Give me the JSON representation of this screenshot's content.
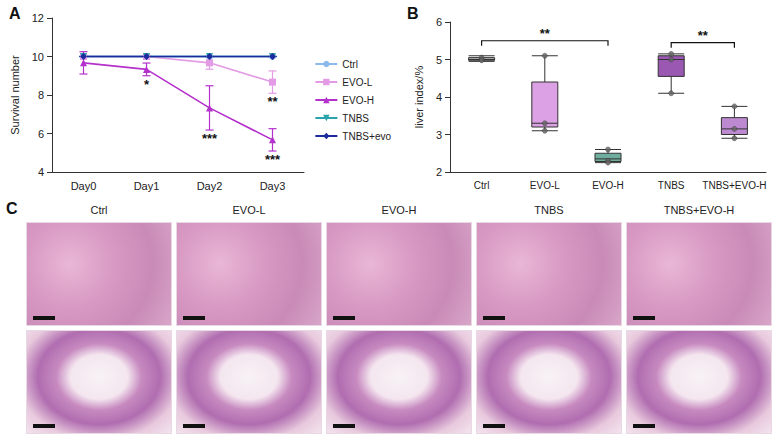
{
  "chart_data": [
    {
      "type": "line",
      "title": "A",
      "y_label": "Survival number",
      "categories": [
        "Day0",
        "Day1",
        "Day2",
        "Day3"
      ],
      "ylim": [
        4,
        12
      ],
      "yticks": [
        4,
        6,
        8,
        10,
        12
      ],
      "grid": false,
      "legend": "right",
      "series": [
        {
          "name": "Ctrl",
          "color": "#8db8ea",
          "marker": "circle",
          "values": [
            10,
            10,
            10,
            10
          ],
          "errors": [
            0,
            0,
            0,
            0
          ]
        },
        {
          "name": "EVO-L",
          "color": "#e49be6",
          "marker": "rect",
          "values": [
            10,
            10,
            9.67,
            8.67
          ],
          "errors": [
            0,
            0,
            0.33,
            0.58
          ]
        },
        {
          "name": "EVO-H",
          "color": "#b431cc",
          "marker": "triangle",
          "values": [
            9.67,
            9.33,
            7.33,
            5.67
          ],
          "errors": [
            0.58,
            0.33,
            1.15,
            0.58
          ]
        },
        {
          "name": "TNBS",
          "color": "#2aa3ab",
          "marker": "triangle-down",
          "values": [
            10,
            10,
            10,
            10
          ],
          "errors": [
            0,
            0,
            0,
            0
          ]
        },
        {
          "name": "TNBS+evo",
          "color": "#1c2a9e",
          "marker": "diamond",
          "values": [
            10,
            10,
            10,
            10
          ],
          "errors": [
            0,
            0,
            0,
            0
          ]
        }
      ],
      "annotations": [
        {
          "text": "*",
          "series": "EVO-H",
          "x": "Day1"
        },
        {
          "text": "***",
          "series": "EVO-H",
          "x": "Day2"
        },
        {
          "text": "***",
          "series": "EVO-H",
          "x": "Day3"
        },
        {
          "text": "**",
          "series": "EVO-L",
          "x": "Day3"
        }
      ]
    },
    {
      "type": "boxplot",
      "title": "B",
      "y_label": "liver index/%",
      "categories": [
        "Ctrl",
        "EVO-L",
        "EVO-H",
        "TNBS",
        "TNBS+EVO-H"
      ],
      "ylim": [
        2,
        6
      ],
      "yticks": [
        2,
        3,
        4,
        5,
        6
      ],
      "grid": false,
      "colors": [
        "#b4b4b4",
        "#dca0e4",
        "#6fae9e",
        "#9a58b2",
        "#bd8ad2"
      ],
      "boxes": [
        [
          4.95,
          4.98,
          5.0,
          5.05,
          5.1
        ],
        [
          3.1,
          3.2,
          3.3,
          4.4,
          5.1
        ],
        [
          2.25,
          2.28,
          2.35,
          2.5,
          2.6
        ],
        [
          4.1,
          4.55,
          5.0,
          5.1,
          5.15
        ],
        [
          2.9,
          3.0,
          3.15,
          3.45,
          3.75
        ]
      ],
      "points": [
        [
          5.0,
          5.05,
          4.98
        ],
        [
          5.1,
          3.3,
          3.1
        ],
        [
          2.6,
          2.3,
          2.25
        ],
        [
          5.15,
          5.0,
          4.1
        ],
        [
          3.75,
          3.15,
          2.9
        ]
      ],
      "comparisons": [
        {
          "from": "Ctrl",
          "to": "EVO-H",
          "label": "**",
          "y": 5.5
        },
        {
          "from": "TNBS",
          "to": "TNBS+EVO-H",
          "label": "**",
          "y": 5.45
        }
      ]
    }
  ],
  "figure_c": {
    "letter": "C",
    "columns": [
      "Ctrl",
      "EVO-L",
      "EVO-H",
      "TNBS",
      "TNBS+EVO-H"
    ]
  }
}
